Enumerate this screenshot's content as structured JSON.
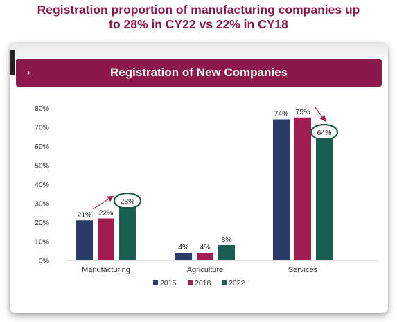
{
  "page": {
    "title_line1": "Registration proportion of manufacturing companies up",
    "title_line2": "to 28% in CY22 vs 22% in CY18"
  },
  "banner": {
    "chevron": "›",
    "title": "Registration of New Companies"
  },
  "colors": {
    "title": "#8b1a4a",
    "banner": "#8b1a4a",
    "highlight_ring": "#1e5a4a",
    "arrow": "#9b2352"
  },
  "chart_data": {
    "type": "bar",
    "categories": [
      "Manufacturing",
      "Agriculture",
      "Services"
    ],
    "series": [
      {
        "name": "2015",
        "color": "#2b3a67",
        "values": [
          21,
          4,
          74
        ]
      },
      {
        "name": "2018",
        "color": "#9e1c4f",
        "values": [
          22,
          4,
          75
        ]
      },
      {
        "name": "2022",
        "color": "#1a5e4f",
        "values": [
          28,
          8,
          64
        ]
      }
    ],
    "value_labels": [
      [
        "21%",
        "4%",
        "74%"
      ],
      [
        "22%",
        "4%",
        "75%"
      ],
      [
        "28%",
        "8%",
        "64%"
      ]
    ],
    "y_ticks": [
      {
        "value": 0,
        "label": "0%"
      },
      {
        "value": 10,
        "label": "10%"
      },
      {
        "value": 20,
        "label": "20%"
      },
      {
        "value": 30,
        "label": "30%"
      },
      {
        "value": 40,
        "label": "40%"
      },
      {
        "value": 50,
        "label": "50%"
      },
      {
        "value": 60,
        "label": "60%"
      },
      {
        "value": 70,
        "label": "70%"
      },
      {
        "value": 80,
        "label": "80%"
      }
    ],
    "ylim": [
      0,
      80
    ],
    "grid": false,
    "legend_position": "bottom",
    "highlights": [
      {
        "category": "Manufacturing",
        "series": "2022",
        "trend": "up"
      },
      {
        "category": "Services",
        "series": "2022",
        "trend": "down"
      }
    ]
  }
}
